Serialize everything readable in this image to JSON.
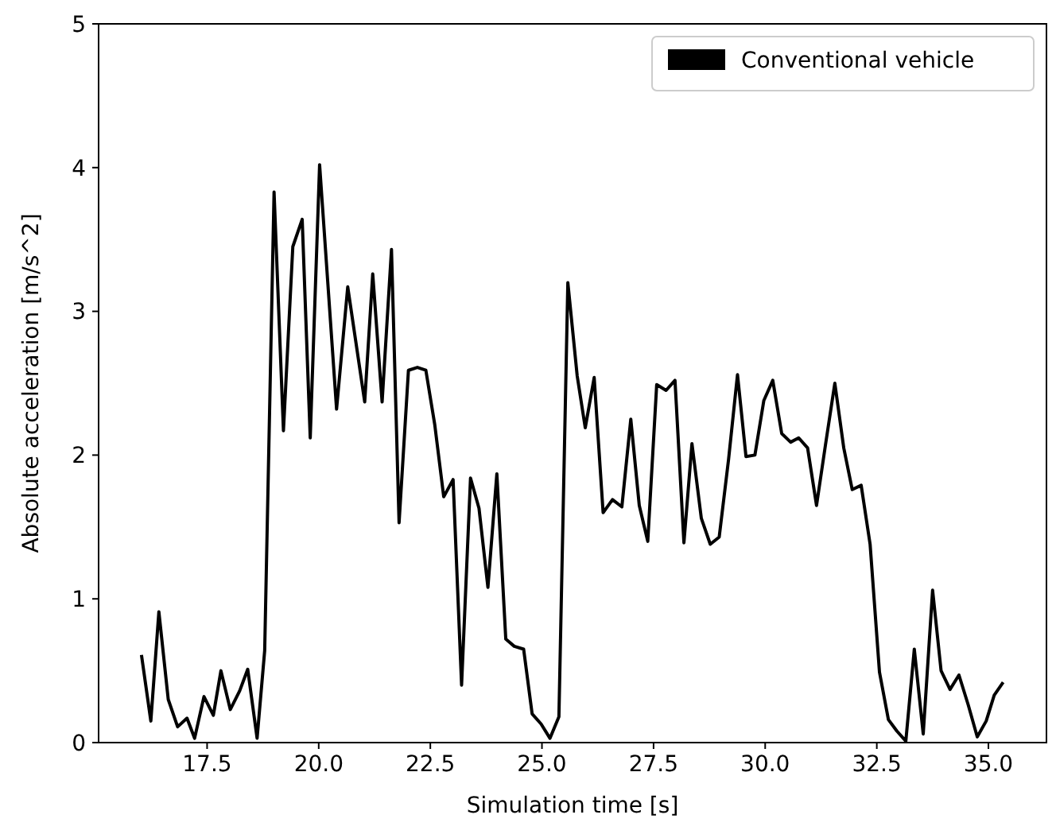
{
  "chart_data": {
    "type": "line",
    "xlabel": "Simulation time [s]",
    "ylabel": "Absolute acceleration [m/s^2]",
    "xlim": [
      15.07,
      36.3
    ],
    "xticks": [
      17.5,
      {
        "value": 20,
        "label": "20.0"
      },
      22.5,
      {
        "value": 25,
        "label": "25.0"
      },
      27.5,
      {
        "value": 30,
        "label": "30.0"
      },
      32.5,
      {
        "value": 35,
        "label": "35.0"
      }
    ],
    "ylim": [
      0,
      5
    ],
    "yticks": [
      0,
      1,
      2,
      3,
      4,
      5
    ],
    "legend": "top right",
    "grid": false,
    "marker": "none",
    "line_style": "solid",
    "series": [
      {
        "name": "Conventional vehicle",
        "color": "#000000",
        "x": [
          16.03,
          16.24,
          16.42,
          16.63,
          16.84,
          17.05,
          17.22,
          17.43,
          17.64,
          17.81,
          18.02,
          18.23,
          18.41,
          18.62,
          18.79,
          19.0,
          19.21,
          19.42,
          19.63,
          19.81,
          20.02,
          20.4,
          20.65,
          21.03,
          21.21,
          21.42,
          21.63,
          21.8,
          22.01,
          22.21,
          22.4,
          22.6,
          22.8,
          23.01,
          23.2,
          23.4,
          23.59,
          23.79,
          23.99,
          24.19,
          24.38,
          24.59,
          24.78,
          24.98,
          25.18,
          25.38,
          25.58,
          25.79,
          25.97,
          26.17,
          26.37,
          26.58,
          26.79,
          26.99,
          27.18,
          27.37,
          27.57,
          27.78,
          27.98,
          28.18,
          28.36,
          28.57,
          28.77,
          28.97,
          29.18,
          29.38,
          29.57,
          29.77,
          29.97,
          30.17,
          30.37,
          30.57,
          30.75,
          30.95,
          31.15,
          31.35,
          31.56,
          31.76,
          31.95,
          32.15,
          32.35,
          32.56,
          32.76,
          32.95,
          33.15,
          33.34,
          33.54,
          33.75,
          33.94,
          34.14,
          34.34,
          34.55,
          34.75,
          34.95,
          35.13,
          35.33
        ],
        "values": [
          0.61,
          0.15,
          0.91,
          0.3,
          0.11,
          0.17,
          0.03,
          0.32,
          0.19,
          0.5,
          0.23,
          0.36,
          0.51,
          0.03,
          0.64,
          3.83,
          2.17,
          3.45,
          3.64,
          2.12,
          4.02,
          2.32,
          3.17,
          2.37,
          3.26,
          2.37,
          3.43,
          1.53,
          2.59,
          2.61,
          2.59,
          2.21,
          1.71,
          1.83,
          0.4,
          1.84,
          1.63,
          1.08,
          1.87,
          0.72,
          0.67,
          0.65,
          0.2,
          0.13,
          0.03,
          0.18,
          3.2,
          2.55,
          2.19,
          2.54,
          1.6,
          1.69,
          1.64,
          2.25,
          1.65,
          1.4,
          2.49,
          2.45,
          2.52,
          1.39,
          2.08,
          1.56,
          1.38,
          1.43,
          1.97,
          2.56,
          1.99,
          2.0,
          2.38,
          2.52,
          2.15,
          2.09,
          2.12,
          2.05,
          1.65,
          2.07,
          2.5,
          2.05,
          1.76,
          1.79,
          1.38,
          0.49,
          0.16,
          0.08,
          0.01,
          0.65,
          0.06,
          1.06,
          0.5,
          0.37,
          0.47,
          0.26,
          0.04,
          0.15,
          0.33,
          0.42
        ]
      }
    ]
  }
}
